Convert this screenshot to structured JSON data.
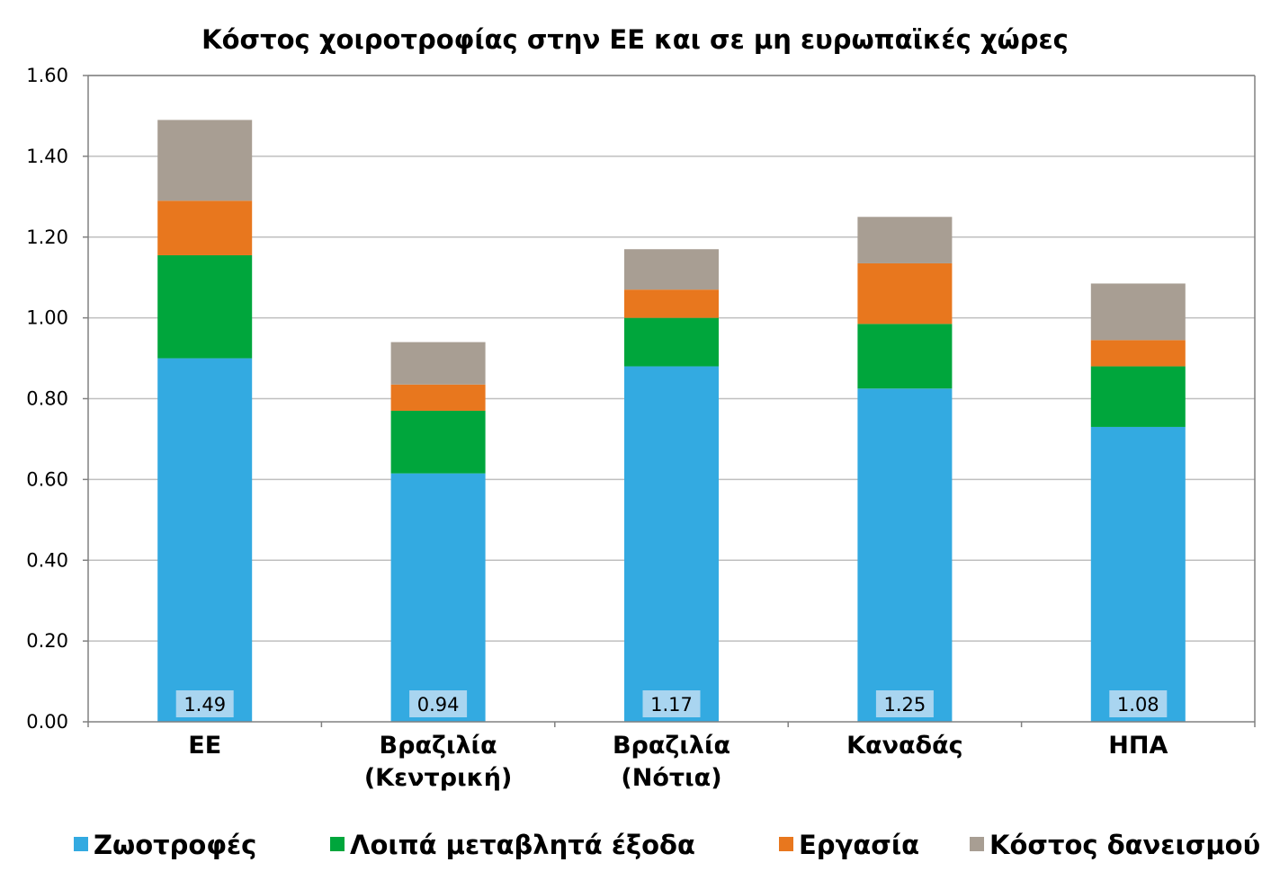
{
  "chart_data": {
    "type": "bar",
    "stacked": true,
    "title": "Κόστος χοιροτροφίας στην ΕΕ και σε μη ευρωπαϊκές χώρες",
    "xlabel": "",
    "ylabel": "",
    "ylim": [
      0,
      1.6
    ],
    "yticks": [
      "0.00",
      "0.20",
      "0.40",
      "0.60",
      "0.80",
      "1.00",
      "1.20",
      "1.40",
      "1.60"
    ],
    "grid": true,
    "legend_position": "bottom",
    "categories": [
      [
        "ΕΕ"
      ],
      [
        "Βραζιλία",
        "(Κεντρική)"
      ],
      [
        "Βραζιλία",
        "(Νότια)"
      ],
      [
        "Καναδάς"
      ],
      [
        "ΗΠΑ"
      ]
    ],
    "series": [
      {
        "name": "Ζωοτροφές",
        "color": "#33aae1",
        "values": [
          0.9,
          0.615,
          0.88,
          0.825,
          0.73
        ]
      },
      {
        "name": "Λοιπά μεταβλητά έξοδα",
        "color": "#00a63c",
        "values": [
          0.255,
          0.155,
          0.12,
          0.16,
          0.15
        ]
      },
      {
        "name": "Εργασία",
        "color": "#e8771e",
        "values": [
          0.135,
          0.065,
          0.07,
          0.15,
          0.065
        ]
      },
      {
        "name": "Κόστος δανεισμού",
        "color": "#a89e93",
        "values": [
          0.2,
          0.105,
          0.1,
          0.115,
          0.14
        ]
      }
    ],
    "totals": [
      "1.49",
      "0.94",
      "1.17",
      "1.25",
      "1.08"
    ],
    "total_label_bg": "#a9d5f0",
    "grid_color": "#bfbfbf",
    "axis_color": "#808080"
  }
}
